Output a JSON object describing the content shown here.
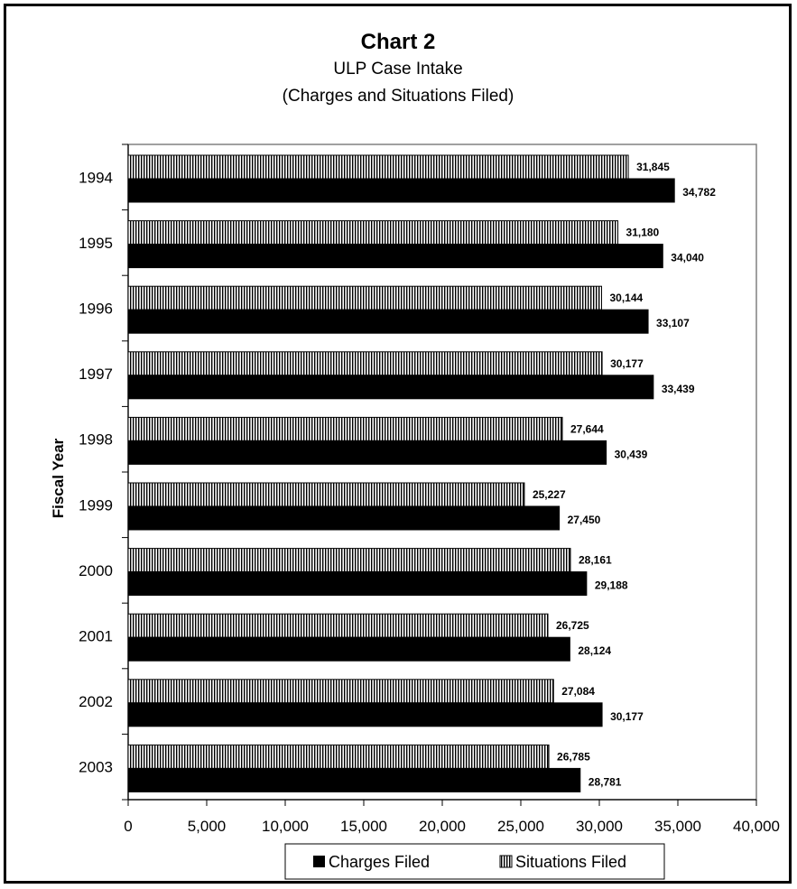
{
  "chart_data": {
    "type": "bar",
    "orientation": "horizontal",
    "title": "Chart 2",
    "subtitle_lines": [
      "ULP Case Intake",
      "(Charges and Situations Filed)"
    ],
    "xlabel": "",
    "ylabel": "Fiscal Year",
    "categories": [
      "1994",
      "1995",
      "1996",
      "1997",
      "1998",
      "1999",
      "2000",
      "2001",
      "2002",
      "2003"
    ],
    "series": [
      {
        "name": "Situations Filed",
        "values": [
          31845,
          31180,
          30144,
          30177,
          27644,
          25227,
          28161,
          26725,
          27084,
          26785
        ],
        "labels": [
          "31,845",
          "31,180",
          "30,144",
          "30,177",
          "27,644",
          "25,227",
          "28,161",
          "26,725",
          "27,084",
          "26,785"
        ],
        "color": "#ffffff",
        "pattern": "vertical-stripes"
      },
      {
        "name": "Charges Filed",
        "values": [
          34782,
          34040,
          33107,
          33439,
          30439,
          27450,
          29188,
          28124,
          30177,
          28781
        ],
        "labels": [
          "34,782",
          "34,040",
          "33,107",
          "33,439",
          "30,439",
          "27,450",
          "29,188",
          "28,124",
          "30,177",
          "28,781"
        ],
        "color": "#000000",
        "pattern": "solid"
      }
    ],
    "xlim": [
      0,
      40000
    ],
    "xticks": [
      0,
      5000,
      10000,
      15000,
      20000,
      25000,
      30000,
      35000,
      40000
    ],
    "xtick_labels": [
      "0",
      "5,000",
      "10,000",
      "15,000",
      "20,000",
      "25,000",
      "30,000",
      "35,000",
      "40,000"
    ],
    "grid": false,
    "legend": {
      "position": "bottom",
      "entries": [
        "Charges Filed",
        "Situations Filed"
      ]
    }
  }
}
